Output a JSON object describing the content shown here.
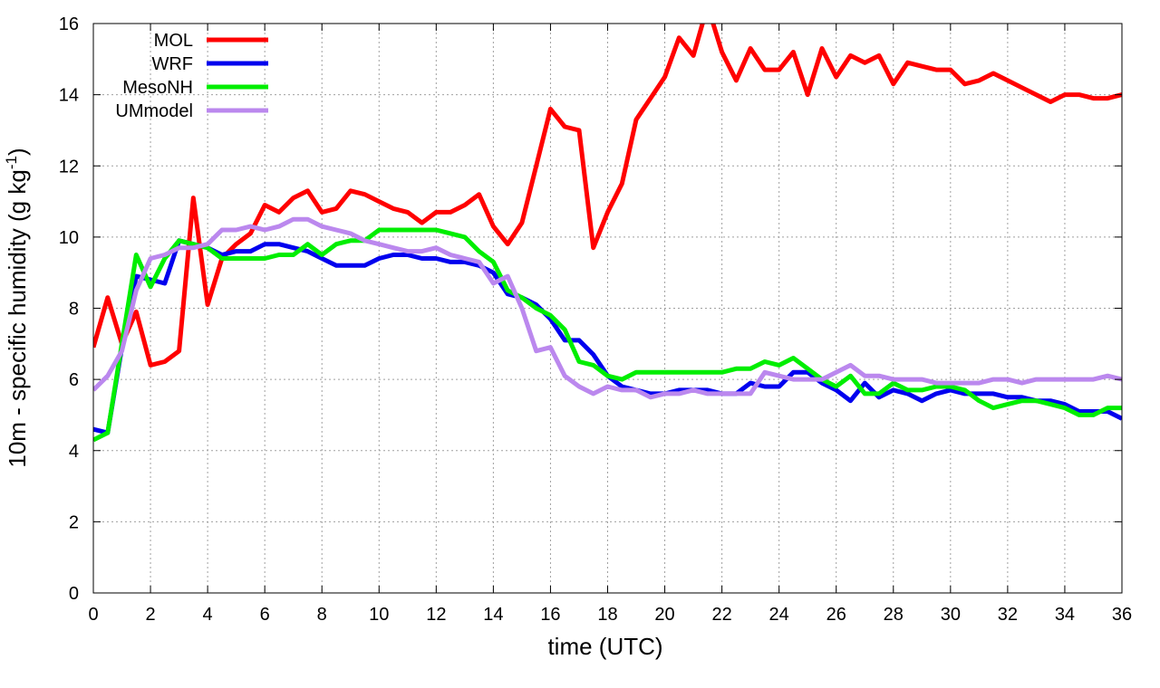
{
  "chart_data": {
    "type": "line",
    "title": "",
    "xlabel": "time (UTC)",
    "ylabel": "10m - specific humidity (g kg",
    "ylabel_sup": "-1",
    "ylabel_close": ")",
    "xlim": [
      0,
      36
    ],
    "ylim": [
      0,
      16
    ],
    "xticks": [
      0,
      2,
      4,
      6,
      8,
      10,
      12,
      14,
      16,
      18,
      20,
      22,
      24,
      26,
      28,
      30,
      32,
      34,
      36
    ],
    "yticks": [
      0,
      2,
      4,
      6,
      8,
      10,
      12,
      14,
      16
    ],
    "grid": true,
    "legend_position": "top-left",
    "series": [
      {
        "name": "MOL",
        "color": "#ff0000",
        "x": [
          0,
          0.5,
          1,
          1.5,
          2,
          2.5,
          3,
          3.5,
          4,
          4.5,
          5,
          5.5,
          6,
          6.5,
          7,
          7.5,
          8,
          8.5,
          9,
          9.5,
          10,
          10.5,
          11,
          11.5,
          12,
          12.5,
          13,
          13.5,
          14,
          14.5,
          15,
          15.5,
          16,
          16.5,
          17,
          17.5,
          18,
          18.5,
          19,
          19.5,
          20,
          20.5,
          21,
          21.5,
          22,
          22.5,
          23,
          23.5,
          24,
          24.5,
          25,
          25.5,
          26,
          26.5,
          27,
          27.5,
          28,
          28.5,
          29,
          29.5,
          30,
          30.5,
          31,
          31.5,
          32,
          32.5,
          33,
          33.5,
          34,
          34.5,
          35,
          35.5,
          36
        ],
        "values": [
          6.9,
          8.3,
          7.0,
          7.9,
          6.4,
          6.5,
          6.8,
          11.1,
          8.1,
          9.4,
          9.8,
          10.1,
          10.9,
          10.7,
          11.1,
          11.3,
          10.7,
          10.8,
          11.3,
          11.2,
          11.0,
          10.8,
          10.7,
          10.4,
          10.7,
          10.7,
          10.9,
          11.2,
          10.3,
          9.8,
          10.4,
          12.0,
          13.6,
          13.1,
          13.0,
          9.7,
          10.7,
          11.5,
          13.3,
          13.9,
          14.5,
          15.6,
          15.1,
          16.5,
          15.2,
          14.4,
          15.3,
          14.7,
          14.7,
          15.2,
          14.0,
          15.3,
          14.5,
          15.1,
          14.9,
          15.1,
          14.3,
          14.9,
          14.8,
          14.7,
          14.7,
          14.3,
          14.4,
          14.6,
          14.4,
          14.2,
          14.0,
          13.8,
          14.0,
          14.0,
          13.9,
          13.9,
          14.0
        ]
      },
      {
        "name": "WRF",
        "color": "#0000ee",
        "x": [
          0,
          0.5,
          1,
          1.5,
          2,
          2.5,
          3,
          3.5,
          4,
          4.5,
          5,
          5.5,
          6,
          6.5,
          7,
          7.5,
          8,
          8.5,
          9,
          9.5,
          10,
          10.5,
          11,
          11.5,
          12,
          12.5,
          13,
          13.5,
          14,
          14.5,
          15,
          15.5,
          16,
          16.5,
          17,
          17.5,
          18,
          18.5,
          19,
          19.5,
          20,
          20.5,
          21,
          21.5,
          22,
          22.5,
          23,
          23.5,
          24,
          24.5,
          25,
          25.5,
          26,
          26.5,
          27,
          27.5,
          28,
          28.5,
          29,
          29.5,
          30,
          30.5,
          31,
          31.5,
          32,
          32.5,
          33,
          33.5,
          34,
          34.5,
          35,
          35.5,
          36
        ],
        "values": [
          4.6,
          4.5,
          6.9,
          8.9,
          8.8,
          8.7,
          9.9,
          9.8,
          9.7,
          9.5,
          9.6,
          9.6,
          9.8,
          9.8,
          9.7,
          9.6,
          9.4,
          9.2,
          9.2,
          9.2,
          9.4,
          9.5,
          9.5,
          9.4,
          9.4,
          9.3,
          9.3,
          9.2,
          9.0,
          8.4,
          8.3,
          8.1,
          7.7,
          7.1,
          7.1,
          6.7,
          6.1,
          5.8,
          5.7,
          5.6,
          5.6,
          5.7,
          5.7,
          5.7,
          5.6,
          5.6,
          5.9,
          5.8,
          5.8,
          6.2,
          6.2,
          5.9,
          5.7,
          5.4,
          5.9,
          5.5,
          5.7,
          5.6,
          5.4,
          5.6,
          5.7,
          5.6,
          5.6,
          5.6,
          5.5,
          5.5,
          5.4,
          5.4,
          5.3,
          5.1,
          5.1,
          5.1,
          4.9
        ]
      },
      {
        "name": "MesoNH",
        "color": "#00ee00",
        "x": [
          0,
          0.5,
          1,
          1.5,
          2,
          2.5,
          3,
          3.5,
          4,
          4.5,
          5,
          5.5,
          6,
          6.5,
          7,
          7.5,
          8,
          8.5,
          9,
          9.5,
          10,
          10.5,
          11,
          11.5,
          12,
          12.5,
          13,
          13.5,
          14,
          14.5,
          15,
          15.5,
          16,
          16.5,
          17,
          17.5,
          18,
          18.5,
          19,
          19.5,
          20,
          20.5,
          21,
          21.5,
          22,
          22.5,
          23,
          23.5,
          24,
          24.5,
          25,
          25.5,
          26,
          26.5,
          27,
          27.5,
          28,
          28.5,
          29,
          29.5,
          30,
          30.5,
          31,
          31.5,
          32,
          32.5,
          33,
          33.5,
          34,
          34.5,
          35,
          35.5,
          36
        ],
        "values": [
          4.3,
          4.5,
          7.0,
          9.5,
          8.6,
          9.4,
          9.9,
          9.8,
          9.7,
          9.4,
          9.4,
          9.4,
          9.4,
          9.5,
          9.5,
          9.8,
          9.5,
          9.8,
          9.9,
          9.9,
          10.2,
          10.2,
          10.2,
          10.2,
          10.2,
          10.1,
          10.0,
          9.6,
          9.3,
          8.5,
          8.3,
          8.0,
          7.8,
          7.4,
          6.5,
          6.4,
          6.1,
          6.0,
          6.2,
          6.2,
          6.2,
          6.2,
          6.2,
          6.2,
          6.2,
          6.3,
          6.3,
          6.5,
          6.4,
          6.6,
          6.3,
          6.0,
          5.8,
          6.1,
          5.6,
          5.6,
          5.9,
          5.7,
          5.7,
          5.8,
          5.8,
          5.7,
          5.4,
          5.2,
          5.3,
          5.4,
          5.4,
          5.3,
          5.2,
          5.0,
          5.0,
          5.2,
          5.2
        ]
      },
      {
        "name": "UMmodel",
        "color": "#bb88ee",
        "x": [
          0,
          0.5,
          1,
          1.5,
          2,
          2.5,
          3,
          3.5,
          4,
          4.5,
          5,
          5.5,
          6,
          6.5,
          7,
          7.5,
          8,
          8.5,
          9,
          9.5,
          10,
          10.5,
          11,
          11.5,
          12,
          12.5,
          13,
          13.5,
          14,
          14.5,
          15,
          15.5,
          16,
          16.5,
          17,
          17.5,
          18,
          18.5,
          19,
          19.5,
          20,
          20.5,
          21,
          21.5,
          22,
          22.5,
          23,
          23.5,
          24,
          24.5,
          25,
          25.5,
          26,
          26.5,
          27,
          27.5,
          28,
          28.5,
          29,
          29.5,
          30,
          30.5,
          31,
          31.5,
          32,
          32.5,
          33,
          33.5,
          34,
          34.5,
          35,
          35.5,
          36
        ],
        "values": [
          5.7,
          6.1,
          6.8,
          8.5,
          9.4,
          9.5,
          9.7,
          9.7,
          9.8,
          10.2,
          10.2,
          10.3,
          10.2,
          10.3,
          10.5,
          10.5,
          10.3,
          10.2,
          10.1,
          9.9,
          9.8,
          9.7,
          9.6,
          9.6,
          9.7,
          9.5,
          9.4,
          9.3,
          8.7,
          8.9,
          8.0,
          6.8,
          6.9,
          6.1,
          5.8,
          5.6,
          5.8,
          5.7,
          5.7,
          5.5,
          5.6,
          5.6,
          5.7,
          5.6,
          5.6,
          5.6,
          5.6,
          6.2,
          6.1,
          6.0,
          6.0,
          6.0,
          6.2,
          6.4,
          6.1,
          6.1,
          6.0,
          6.0,
          6.0,
          5.9,
          5.9,
          5.9,
          5.9,
          6.0,
          6.0,
          5.9,
          6.0,
          6.0,
          6.0,
          6.0,
          6.0,
          6.1,
          6.0
        ]
      }
    ]
  }
}
